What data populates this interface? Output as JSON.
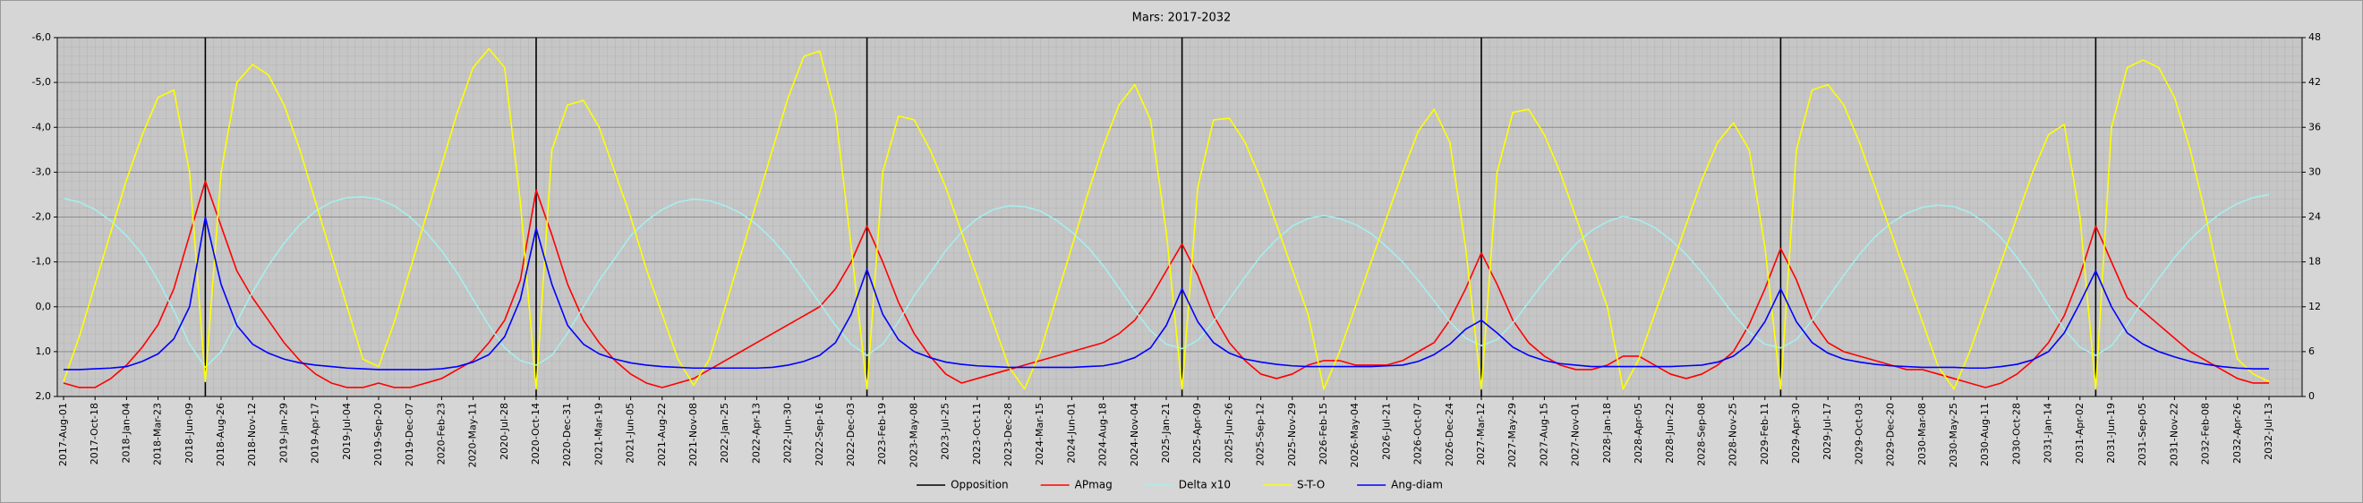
{
  "chart_data": {
    "type": "line",
    "title": "Mars: 2017-2032",
    "categories": [
      "2017-Aug-01",
      null,
      "2017-Oct-18",
      null,
      "2018-Jan-04",
      null,
      "2018-Mar-23",
      null,
      "2018-Jun-09",
      null,
      "2018-Aug-26",
      null,
      "2018-Nov-12",
      null,
      "2019-Jan-29",
      null,
      "2019-Apr-17",
      null,
      "2019-Jul-04",
      null,
      "2019-Sep-20",
      null,
      "2019-Dec-07",
      null,
      "2020-Feb-23",
      null,
      "2020-May-11",
      null,
      "2020-Jul-28",
      null,
      "2020-Oct-14",
      null,
      "2020-Dec-31",
      null,
      "2021-Mar-19",
      null,
      "2021-Jun-05",
      null,
      "2021-Aug-22",
      null,
      "2021-Nov-08",
      null,
      "2022-Jan-25",
      null,
      "2022-Apr-13",
      null,
      "2022-Jun-30",
      null,
      "2022-Sep-16",
      null,
      "2022-Dec-03",
      null,
      "2023-Feb-19",
      null,
      "2023-May-08",
      null,
      "2023-Jul-25",
      null,
      "2023-Oct-11",
      null,
      "2023-Dec-28",
      null,
      "2024-Mar-15",
      null,
      "2024-Jun-01",
      null,
      "2024-Aug-18",
      null,
      "2024-Nov-04",
      null,
      "2025-Jan-21",
      null,
      "2025-Apr-09",
      null,
      "2025-Jun-26",
      null,
      "2025-Sep-12",
      null,
      "2025-Nov-29",
      null,
      "2026-Feb-15",
      null,
      "2026-May-04",
      null,
      "2026-Jul-21",
      null,
      "2026-Oct-07",
      null,
      "2026-Dec-24",
      null,
      "2027-Mar-12",
      null,
      "2027-May-29",
      null,
      "2027-Aug-15",
      null,
      "2027-Nov-01",
      null,
      "2028-Jan-18",
      null,
      "2028-Apr-05",
      null,
      "2028-Jun-22",
      null,
      "2028-Sep-08",
      null,
      "2028-Nov-25",
      null,
      "2029-Feb-11",
      null,
      "2029-Apr-30",
      null,
      "2029-Jul-17",
      null,
      "2029-Oct-03",
      null,
      "2029-Dec-20",
      null,
      "2030-Mar-08",
      null,
      "2030-May-25",
      null,
      "2030-Aug-11",
      null,
      "2030-Oct-28",
      null,
      "2031-Jan-14",
      null,
      "2031-Apr-02",
      null,
      "2031-Jun-19",
      null,
      "2031-Sep-05",
      null,
      "2031-Nov-22",
      null,
      "2032-Feb-08",
      null,
      "2032-Apr-26",
      null,
      "2032-Jul-13"
    ],
    "series": [
      {
        "name": "Opposition",
        "color": "#000000",
        "style": "vertical-line",
        "values": [
          null,
          null,
          null,
          null,
          null,
          null,
          null,
          null,
          null,
          -6,
          null,
          null,
          null,
          null,
          null,
          null,
          null,
          null,
          null,
          null,
          null,
          null,
          null,
          null,
          null,
          null,
          null,
          null,
          null,
          null,
          -6,
          null,
          null,
          null,
          null,
          null,
          null,
          null,
          null,
          null,
          null,
          null,
          null,
          null,
          null,
          null,
          null,
          null,
          null,
          null,
          null,
          -6,
          null,
          null,
          null,
          null,
          null,
          null,
          null,
          null,
          null,
          null,
          null,
          null,
          null,
          null,
          null,
          null,
          null,
          null,
          null,
          -6,
          null,
          null,
          null,
          null,
          null,
          null,
          null,
          null,
          null,
          null,
          null,
          null,
          null,
          null,
          null,
          null,
          null,
          null,
          -6,
          null,
          null,
          null,
          null,
          null,
          null,
          null,
          null,
          null,
          null,
          null,
          null,
          null,
          null,
          null,
          null,
          null,
          null,
          -6,
          null,
          null,
          null,
          null,
          null,
          null,
          null,
          null,
          null,
          null,
          null,
          null,
          null,
          null,
          null,
          null,
          null,
          null,
          null,
          -6,
          null,
          null,
          null,
          null,
          null,
          null,
          null,
          null,
          null,
          null,
          null
        ]
      },
      {
        "name": "APmag",
        "color": "#ff0000",
        "values": [
          1.7,
          1.8,
          1.8,
          1.6,
          1.3,
          0.9,
          0.4,
          -0.4,
          -1.6,
          -2.8,
          -1.8,
          -0.8,
          -0.2,
          0.3,
          0.8,
          1.2,
          1.5,
          1.7,
          1.8,
          1.8,
          1.7,
          1.8,
          1.8,
          1.7,
          1.6,
          1.4,
          1.2,
          0.8,
          0.3,
          -0.6,
          -2.6,
          -1.6,
          -0.5,
          0.3,
          0.8,
          1.2,
          1.5,
          1.7,
          1.8,
          1.7,
          1.6,
          1.4,
          1.2,
          1.0,
          0.8,
          0.6,
          0.4,
          0.2,
          0.0,
          -0.4,
          -1.0,
          -1.8,
          -1.0,
          -0.1,
          0.6,
          1.1,
          1.5,
          1.7,
          1.6,
          1.5,
          1.4,
          1.3,
          1.2,
          1.1,
          1.0,
          0.9,
          0.8,
          0.6,
          0.3,
          -0.2,
          -0.8,
          -1.4,
          -0.7,
          0.2,
          0.8,
          1.2,
          1.5,
          1.6,
          1.5,
          1.3,
          1.2,
          1.2,
          1.3,
          1.3,
          1.3,
          1.2,
          1.0,
          0.8,
          0.3,
          -0.4,
          -1.2,
          -0.5,
          0.3,
          0.8,
          1.1,
          1.3,
          1.4,
          1.4,
          1.3,
          1.1,
          1.1,
          1.3,
          1.5,
          1.6,
          1.5,
          1.3,
          1.0,
          0.4,
          -0.4,
          -1.3,
          -0.6,
          0.3,
          0.8,
          1.0,
          1.1,
          1.2,
          1.3,
          1.4,
          1.4,
          1.5,
          1.6,
          1.7,
          1.8,
          1.7,
          1.5,
          1.2,
          0.8,
          0.2,
          -0.7,
          -1.8,
          -1.0,
          -0.2,
          0.1,
          0.4,
          0.7,
          1.0,
          1.2,
          1.4,
          1.6,
          1.7,
          1.7
        ]
      },
      {
        "name": "Delta x10",
        "color": "#a6eeee",
        "axis": "y2",
        "values": [
          26.5,
          26,
          25,
          23.5,
          21.5,
          19,
          15.5,
          11.5,
          7,
          3.9,
          6,
          10,
          14,
          17.5,
          20.5,
          23,
          24.8,
          26,
          26.6,
          26.7,
          26.4,
          25.5,
          24,
          22,
          19.5,
          16.5,
          13,
          9.5,
          6.5,
          4.8,
          4.2,
          5.5,
          8.5,
          12,
          15.5,
          18.5,
          21.5,
          23.5,
          25,
          26,
          26.4,
          26.2,
          25.5,
          24.5,
          23,
          21,
          18.5,
          15.5,
          12.5,
          9.5,
          7,
          5.5,
          7,
          10,
          13.5,
          16.5,
          19.5,
          22,
          23.8,
          25,
          25.5,
          25.4,
          24.8,
          23.6,
          22,
          20,
          17.5,
          14.5,
          11.5,
          8.8,
          7,
          6.4,
          7.5,
          10,
          13,
          16,
          18.8,
          21,
          22.8,
          23.8,
          24.2,
          23.8,
          23,
          21.8,
          20,
          18,
          15.5,
          12.8,
          10,
          7.8,
          6.8,
          7.6,
          9.8,
          12.6,
          15.4,
          18,
          20.4,
          22.2,
          23.4,
          24.1,
          23.6,
          22.6,
          21,
          19,
          16.6,
          13.8,
          11,
          8.6,
          7,
          6.5,
          7.6,
          10.2,
          13.2,
          16.2,
          19,
          21.4,
          23.2,
          24.5,
          25.3,
          25.6,
          25.4,
          24.6,
          23.2,
          21.2,
          18.6,
          15.6,
          12.2,
          9,
          6.6,
          5.5,
          6.8,
          9.6,
          12.8,
          15.8,
          18.6,
          21,
          23,
          24.6,
          25.8,
          26.6,
          27
        ]
      },
      {
        "name": "S-T-O",
        "color": "#ffff00",
        "axis": "y2",
        "values": [
          2,
          8,
          15,
          22,
          29,
          35,
          40,
          41,
          30,
          2,
          30,
          42,
          44.4,
          43,
          39,
          33,
          26,
          19,
          12,
          5,
          4,
          10,
          17,
          24,
          31,
          38,
          44,
          46.5,
          44,
          26,
          1,
          33,
          39,
          39.6,
          36,
          30,
          24,
          17,
          11,
          5,
          1.5,
          5,
          12,
          19,
          26,
          33,
          40,
          45.5,
          46.2,
          38,
          20,
          1,
          30,
          37.5,
          37,
          33,
          28,
          22,
          16,
          10,
          4,
          1,
          6,
          13,
          20,
          27,
          33.5,
          39,
          41.7,
          37,
          22,
          1,
          28,
          37,
          37.2,
          34,
          29,
          23,
          17,
          11,
          1,
          6,
          12,
          18,
          24,
          30,
          35.5,
          38.4,
          34,
          20,
          1,
          30,
          38,
          38.4,
          35,
          30,
          24,
          18,
          12,
          1,
          5,
          11,
          17,
          23,
          29,
          34,
          36.6,
          33,
          20,
          1,
          33,
          41,
          41.7,
          39,
          34,
          28,
          22,
          16,
          10,
          4,
          1,
          6,
          12,
          18,
          24,
          30,
          35,
          36.4,
          24,
          1,
          36,
          44,
          45,
          44,
          40,
          33,
          24,
          14,
          5,
          3,
          2
        ]
      },
      {
        "name": "Ang-diam",
        "color": "#0000ff",
        "axis": "y2",
        "values": [
          3.6,
          3.6,
          3.7,
          3.8,
          4.0,
          4.7,
          5.7,
          7.7,
          12,
          24,
          15,
          9.5,
          7,
          5.8,
          5,
          4.5,
          4.2,
          4,
          3.8,
          3.7,
          3.6,
          3.6,
          3.6,
          3.6,
          3.7,
          4.0,
          4.6,
          5.6,
          8,
          13,
          22.5,
          15,
          9.5,
          7,
          5.7,
          5,
          4.5,
          4.2,
          4,
          3.9,
          3.8,
          3.8,
          3.8,
          3.8,
          3.8,
          3.9,
          4.2,
          4.7,
          5.5,
          7.2,
          11,
          17,
          11,
          7.6,
          6,
          5.2,
          4.6,
          4.3,
          4.1,
          4,
          3.9,
          3.9,
          3.9,
          3.9,
          3.9,
          4.0,
          4.1,
          4.5,
          5.2,
          6.5,
          9.5,
          14.4,
          10,
          7.2,
          5.8,
          5,
          4.6,
          4.3,
          4.1,
          4.0,
          4.0,
          4.0,
          4.0,
          4.0,
          4.1,
          4.2,
          4.7,
          5.6,
          7,
          9,
          10.2,
          8.5,
          6.6,
          5.5,
          4.8,
          4.4,
          4.2,
          4.0,
          4.0,
          4.0,
          4.0,
          4.0,
          4.0,
          4.1,
          4.2,
          4.6,
          5.4,
          7,
          10,
          14.4,
          10,
          7.2,
          5.8,
          5,
          4.6,
          4.3,
          4.1,
          4,
          3.9,
          3.9,
          3.9,
          3.8,
          3.8,
          4.0,
          4.3,
          4.9,
          6,
          8.5,
          12.5,
          16.8,
          12,
          8.5,
          7,
          6,
          5.3,
          4.7,
          4.3,
          4,
          3.8,
          3.7,
          3.7
        ]
      }
    ],
    "ylim": [
      2,
      -6
    ],
    "yticks": [
      {
        "value": -6,
        "label": "-6,0"
      },
      {
        "value": -5,
        "label": "-5,0"
      },
      {
        "value": -4,
        "label": "-4,0"
      },
      {
        "value": -3,
        "label": "-3,0"
      },
      {
        "value": -2,
        "label": "-2,0"
      },
      {
        "value": -1,
        "label": "-1,0"
      },
      {
        "value": 0,
        "label": "0,0"
      },
      {
        "value": 1,
        "label": "1,0"
      },
      {
        "value": 2,
        "label": "2,0"
      }
    ],
    "y2lim": [
      0,
      48
    ],
    "y2ticks": [
      0,
      6,
      12,
      18,
      24,
      30,
      36,
      42,
      48
    ],
    "grid": true,
    "legend": "bottom"
  }
}
